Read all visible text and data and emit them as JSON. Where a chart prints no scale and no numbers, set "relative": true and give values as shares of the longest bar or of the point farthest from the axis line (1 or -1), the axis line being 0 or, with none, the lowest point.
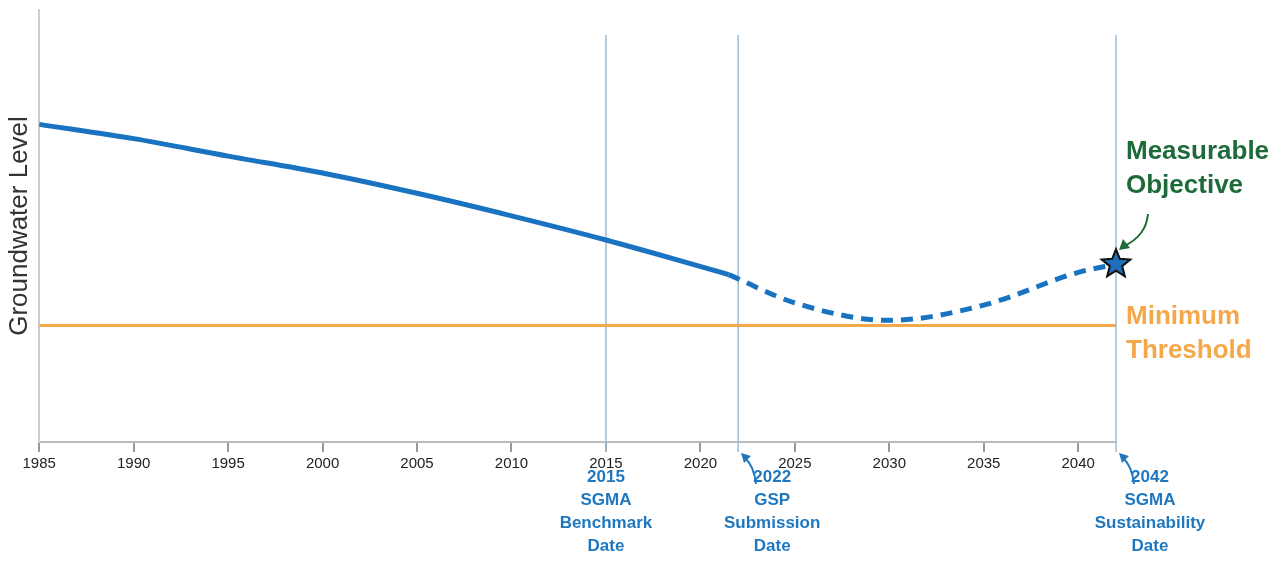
{
  "chart_data": {
    "type": "line",
    "relative": true,
    "ylabel": "Groundwater Level",
    "xlim": [
      1985,
      2042
    ],
    "xticks": [
      1985,
      1990,
      1995,
      2000,
      2005,
      2010,
      2015,
      2020,
      2025,
      2030,
      2035,
      2040
    ],
    "grid": false,
    "legend": false,
    "series": [
      {
        "color": "#1a73c0",
        "line_style": "solid",
        "marker": "none",
        "x": [
          1985,
          1990,
          1995,
          2000,
          2005,
          2010,
          2015,
          2021.5
        ],
        "values": [
          1.0,
          0.955,
          0.9,
          0.847,
          0.783,
          0.712,
          0.636,
          0.527
        ]
      },
      {
        "color": "#1a73c0",
        "line_style": "dashed",
        "marker": "none",
        "x": [
          2021.5,
          2025,
          2030,
          2035,
          2040,
          2042
        ],
        "values": [
          0.527,
          0.438,
          0.383,
          0.431,
          0.534,
          0.56
        ]
      },
      {
        "type": "scatter",
        "color": "#1f6fba",
        "marker": "star",
        "x": [
          2042
        ],
        "values": [
          0.56
        ]
      }
    ],
    "ref_lines": [
      {
        "axis": "x",
        "value": 2015,
        "label": "2015 SGMA Benchmark Date",
        "color": "#9dbbd8"
      },
      {
        "axis": "x",
        "value": 2022,
        "label": "2022 GSP Submission Date",
        "color": "#9dbbd8"
      },
      {
        "axis": "x",
        "value": 2042,
        "label": "2042 SGMA Sustainability Date",
        "color": "#9dbbd8"
      },
      {
        "axis": "y",
        "value": 0.367,
        "label": "Minimum Threshold",
        "color": "#f5a84a"
      }
    ],
    "annotations": [
      {
        "text": "Measurable Objective",
        "x": 2042,
        "y": 0.56
      }
    ]
  }
}
